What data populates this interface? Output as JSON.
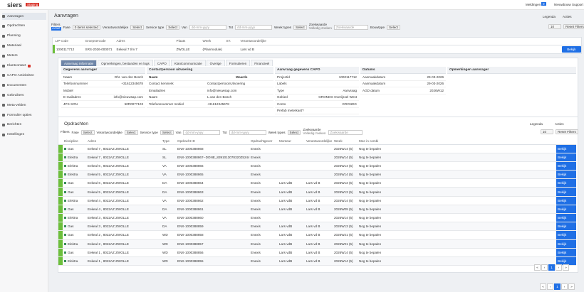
{
  "header": {
    "logo": "siers",
    "badge": "Staging",
    "notifications": "Meldingen",
    "notification_count": "0",
    "user": "Nieuwbouw Support"
  },
  "sidebar": [
    "Aanvragen",
    "Opdrachten",
    "Planning",
    "Materiaal",
    "Meters",
    "Klantcontact",
    "CAPO Activiteiten",
    "Documenten",
    "Gebruikers",
    "Meta-velden",
    "Formulier opties",
    "Berichten",
    "Instellingen"
  ],
  "page": {
    "title": "Aanvragen",
    "legend": "Legenda",
    "actions": "Acties"
  },
  "filters": {
    "label": "Filters",
    "status": "Actief",
    "fields": [
      {
        "label": "Fase",
        "value": "0 items selected"
      },
      {
        "label": "Verantwoordelijke",
        "value": "Select"
      },
      {
        "label": "Service type",
        "value": "Select"
      },
      {
        "label": "Van",
        "value": "dd-mm-yyyy"
      },
      {
        "label": "Tot",
        "value": "dd-mm-yyyy"
      },
      {
        "label": "Week types",
        "value": "Select"
      }
    ],
    "search_label": "Zoekwaarde",
    "full_search": "Volledig zoeken",
    "search_placeholder": "Zoekwaarde",
    "extra": {
      "label": "Bouwtype",
      "value": "Select"
    },
    "page_size": "10",
    "reset": "Reset Filters"
  },
  "requests": {
    "columns": [
      "LIP-code",
      "Groepsercode",
      "Adres",
      "Plaats",
      "Week",
      "ST.",
      "Verantwoordelijke"
    ],
    "rows": [
      [
        "1000117712",
        "SRS-2026-000071",
        "Eekeal 7 t/m 7",
        "ZWOLLE",
        "(Planmodule)",
        "",
        "Lars vd B"
      ]
    ],
    "action": "Bekijk"
  },
  "detail": {
    "tabs": [
      "Aanvraag informatie",
      "Opmerkingen, bestanden en logs",
      "CAPO",
      "Klantcommunicatie",
      "Overige",
      "Formulieren",
      "Financieel"
    ],
    "sections": [
      {
        "title": "Gegevens aanvrager",
        "rows": [
          [
            "Naam",
            "Dhr. van den Bosch"
          ],
          [
            "Telefoonnummer",
            "+31612345678"
          ],
          [
            "Mobiel",
            ""
          ],
          [
            "E-mailadres",
            "info@nieuwsap.com"
          ],
          [
            "4PS SON",
            "50R0077103"
          ]
        ]
      },
      {
        "title": "Contactpersoon uitvoering",
        "rows": [
          [
            "Naam",
            "Waarde"
          ],
          [
            "Contact kenmerk",
            "ContactpersoonUitvoering"
          ],
          [
            "Emailadres",
            "info@nieuwsap.com"
          ],
          [
            "Naam",
            "L.van den Bosch"
          ],
          [
            "Telefoonnummer mobiel",
            "+31612345678"
          ]
        ]
      },
      {
        "title": "Aanvraag gegevens CAPO",
        "rows": [
          [
            "Projectid",
            "1000117712"
          ],
          [
            "Labels",
            ""
          ],
          [
            "Type",
            "Aanvraag"
          ],
          [
            "Gebied",
            "GRONDG Overijssel West"
          ],
          [
            "Conto",
            "GRONDG"
          ],
          [
            "Prefab meterkast?",
            ""
          ]
        ]
      },
      {
        "title": "Datums",
        "rows": [
          [
            "Aanmaakdatum",
            "29-03-2026"
          ],
          [
            "Aanmaakdatum",
            "29-03-2026"
          ],
          [
            "AGD datum",
            "2026W12"
          ]
        ]
      },
      {
        "title": "Opmerkingen aanvrager",
        "rows": []
      }
    ]
  },
  "orders": {
    "title": "Opdrachten",
    "legend": "Legenda",
    "actions": "Acties",
    "filters": {
      "label": "Filters",
      "fields": [
        {
          "label": "Fase",
          "value": "Select"
        },
        {
          "label": "Verantwoordelijke",
          "value": "Select"
        },
        {
          "label": "Service type",
          "value": "Select"
        },
        {
          "label": "Van",
          "value": "dd-mm-yyyy"
        },
        {
          "label": "Tot",
          "value": "dd-mm-yyyy"
        },
        {
          "label": "Week types",
          "value": "Select"
        }
      ],
      "search_label": "Zoekwaarde",
      "full_search": "Volledig zoeken",
      "search_placeholder": "Zoekwaarde",
      "page_size": "10",
      "reset": "Reset Filters"
    },
    "columns": [
      "Discipline",
      "Adres",
      "Type",
      "Opdracht ID",
      "Opdrachtgever",
      "Monteur",
      "Verantwoordelijke",
      "Week",
      "Mee in combi"
    ],
    "rows": [
      [
        "Gas",
        "Eekeal 7 , 8022AZ ZWOLLE",
        "SL",
        "ENX-1000388868",
        "Enexis",
        "",
        "",
        "2026W14 (5)",
        "Nog te bepalen"
      ],
      [
        "Elektra",
        "Eekeal 7 , 8022AZ ZWOLLE",
        "SL",
        "ENX-1000388867--DONE_8391013078320Z5244",
        "Enexis",
        "",
        "",
        "2026W14 (5)",
        "Nog te bepalen"
      ],
      [
        "Elektra",
        "Eekeal 6 , 8022AZ ZWOLLE",
        "VA",
        "ENX-1000388866",
        "Enexis",
        "",
        "",
        "2026W14 (5)",
        "Nog te bepalen"
      ],
      [
        "Elektra",
        "Eekeal 5 , 8022AZ ZWOLLE",
        "VA",
        "ENX-1000388865",
        "Enexis",
        "",
        "",
        "2026W14 (5)",
        "Nog te bepalen"
      ],
      [
        "Gas",
        "Eekeal 6 , 8022AZ ZWOLLE",
        "DA",
        "ENX-1000388864",
        "Enexis",
        "Lars vdB",
        "Lars vd B",
        "2026W13 (5)",
        "Nog te bepalen"
      ],
      [
        "Gas",
        "Eekeal 5 , 8022AZ ZWOLLE",
        "DA",
        "ENX-1000388863",
        "Enexis",
        "Lars vdB",
        "Lars vd B",
        "2026W13 (5)",
        "Nog te bepalen"
      ],
      [
        "Elektra",
        "Eekeal 4 , 8022AZ ZWOLLE",
        "VA",
        "ENX-1000388862",
        "Enexis",
        "Lars vdB",
        "Lars vd B",
        "2026W14 (5)",
        "Nog te bepalen"
      ],
      [
        "Gas",
        "Eekeal 4 , 8022AZ ZWOLLE",
        "DA",
        "ENX-1000388861",
        "Enexis",
        "Lars vdB",
        "Lars vd B",
        "2026W09 (5)",
        "Nog te bepalen"
      ],
      [
        "Elektra",
        "Eekeal 3 , 8022AZ ZWOLLE",
        "VA",
        "ENX-1000388860",
        "Enexis",
        "",
        "",
        "2026W14 (5)",
        "Nog te bepalen"
      ],
      [
        "Gas",
        "Eekeal 3 , 8022AZ ZWOLLE",
        "DA",
        "ENX-1000388859",
        "Enexis",
        "Lars vdB",
        "Lars vd B",
        "2026W13 (5)",
        "Nog te bepalen"
      ],
      [
        "Gas",
        "Eekeal 2 , 8022AZ ZWOLLE",
        "WD",
        "ENX-1000388858",
        "Enexis",
        "Lars vdB",
        "Lars vd B",
        "2026W21 (5)",
        "Nog te bepalen"
      ],
      [
        "Elektra",
        "Eekeal 2 , 8022AZ ZWOLLE",
        "WD",
        "ENX-1000388857",
        "Enexis",
        "Lars vdB",
        "Lars vd B",
        "2026W21 (5)",
        "Nog te bepalen"
      ],
      [
        "Gas",
        "Eekeal 1 , 8022AZ ZWOLLE",
        "WD",
        "ENX-1000388856",
        "Enexis",
        "Lars vdB",
        "Lars vd B",
        "2026W14 (5)",
        "Nog te bepalen"
      ],
      [
        "Elektra",
        "Eekeal 1 , 8022AZ ZWOLLE",
        "WD",
        "ENX-1000388855",
        "Enexis",
        "Lars vdB",
        "Lars vd B",
        "2026W14 (5)",
        "Nog te bepalen"
      ]
    ],
    "action": "Bekijk",
    "pagination": [
      "«",
      "‹",
      "1",
      "›",
      "»"
    ]
  },
  "pagination": [
    "«",
    "‹",
    "1",
    "›",
    "»"
  ]
}
